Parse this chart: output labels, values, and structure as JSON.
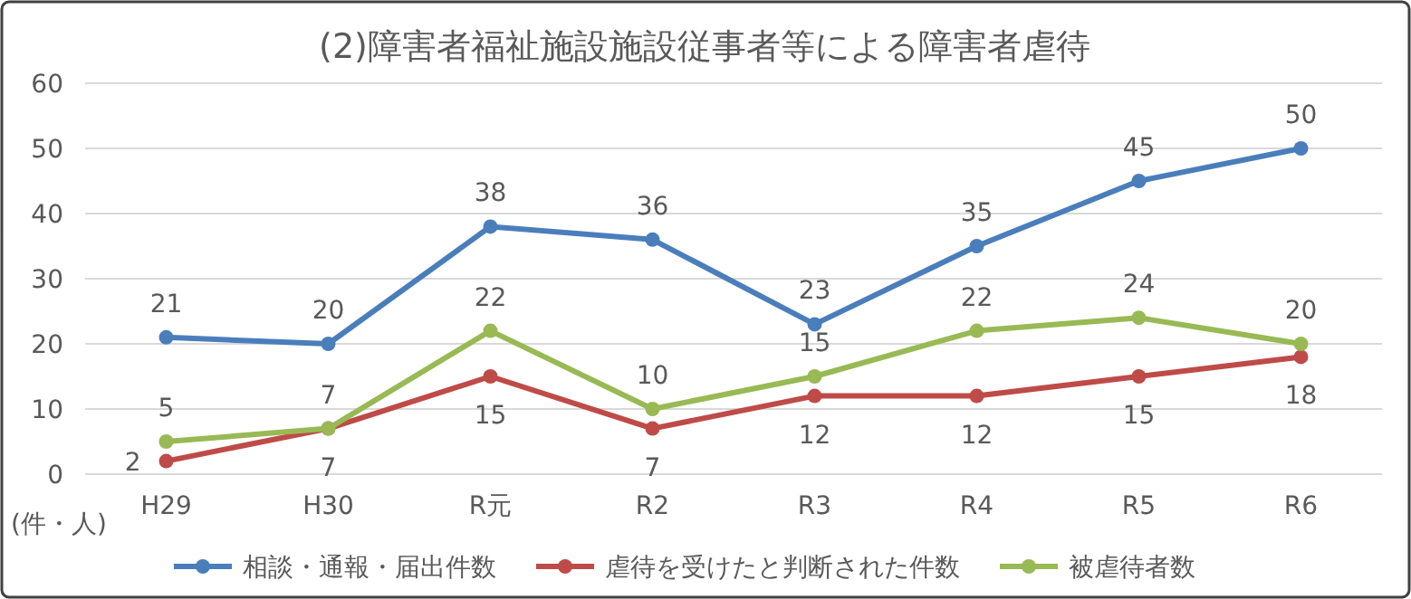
{
  "chart_data": {
    "type": "line",
    "title": "(2)障害者福祉施設施設従事者等による障害者虐待",
    "ylabel": "(件・人)",
    "categories": [
      "H29",
      "H30",
      "R元",
      "R2",
      "R3",
      "R4",
      "R5",
      "R6"
    ],
    "series": [
      {
        "name": "相談・通報・届出件数",
        "color": "#4a7ebb",
        "values": [
          21,
          20,
          38,
          36,
          23,
          35,
          45,
          50
        ]
      },
      {
        "name": "虐待を受けたと判断された件数",
        "color": "#be4b48",
        "values": [
          2,
          7,
          15,
          7,
          12,
          12,
          15,
          18
        ]
      },
      {
        "name": "被虐待者数",
        "color": "#98b954",
        "values": [
          5,
          7,
          22,
          10,
          15,
          22,
          24,
          20
        ]
      }
    ],
    "ylim": [
      0,
      60
    ],
    "yticks": [
      0,
      10,
      20,
      30,
      40,
      50,
      60
    ],
    "grid": "y",
    "legend": "bottom",
    "marker": "circle",
    "line_style": "solid",
    "data_labels": true
  }
}
